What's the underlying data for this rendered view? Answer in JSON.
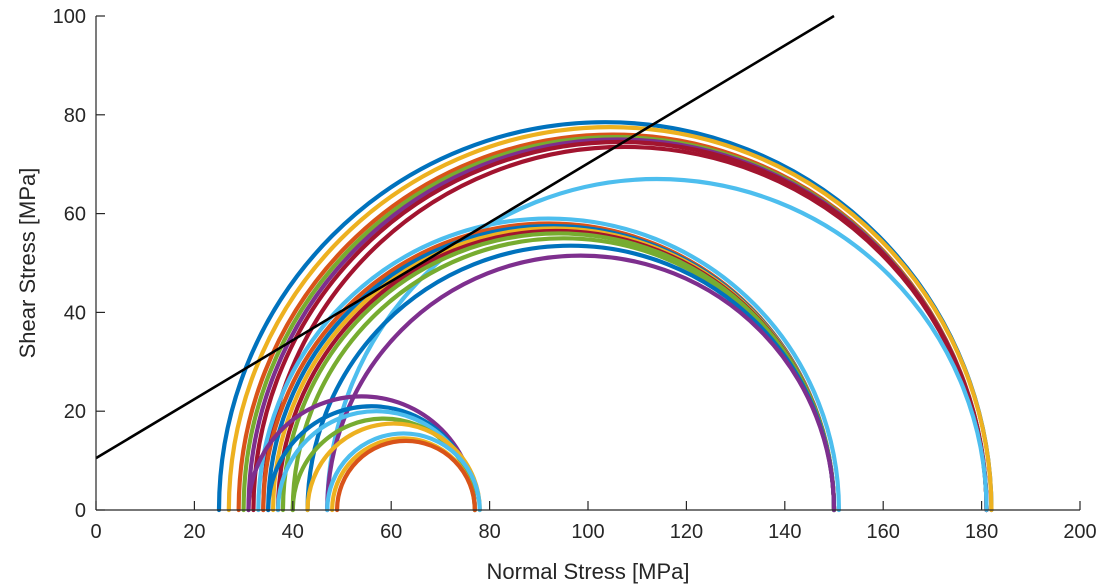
{
  "chart_data": {
    "type": "line",
    "title": "",
    "xlabel": "Normal Stress [MPa]",
    "ylabel": "Shear Stress [MPa]",
    "xlim": [
      0,
      200
    ],
    "ylim": [
      0,
      100
    ],
    "xticks": [
      "0",
      "20",
      "40",
      "60",
      "80",
      "100",
      "120",
      "140",
      "160",
      "180",
      "200"
    ],
    "yticks": [
      "0",
      "20",
      "40",
      "60",
      "80",
      "100"
    ],
    "grid": false,
    "legend": "none",
    "series": [
      {
        "kind": "mohr-circle",
        "sigma3": 25,
        "sigma1": 182,
        "color": "#0072BD"
      },
      {
        "kind": "mohr-circle",
        "sigma3": 27,
        "sigma1": 182,
        "color": "#EDB120"
      },
      {
        "kind": "mohr-circle",
        "sigma3": 29,
        "sigma1": 181,
        "color": "#D95319"
      },
      {
        "kind": "mohr-circle",
        "sigma3": 30,
        "sigma1": 181,
        "color": "#77AC30"
      },
      {
        "kind": "mohr-circle",
        "sigma3": 31,
        "sigma1": 181,
        "color": "#7E2F8E"
      },
      {
        "kind": "mohr-circle",
        "sigma3": 32,
        "sigma1": 181,
        "color": "#A2142F"
      },
      {
        "kind": "mohr-circle",
        "sigma3": 34,
        "sigma1": 181,
        "color": "#A2142F"
      },
      {
        "kind": "mohr-circle",
        "sigma3": 47,
        "sigma1": 181,
        "color": "#4DBEEE"
      },
      {
        "kind": "mohr-circle",
        "sigma3": 33,
        "sigma1": 151,
        "color": "#4DBEEE"
      },
      {
        "kind": "mohr-circle",
        "sigma3": 34,
        "sigma1": 150,
        "color": "#D95319"
      },
      {
        "kind": "mohr-circle",
        "sigma3": 35,
        "sigma1": 150,
        "color": "#0072BD"
      },
      {
        "kind": "mohr-circle",
        "sigma3": 36,
        "sigma1": 150,
        "color": "#EDB120"
      },
      {
        "kind": "mohr-circle",
        "sigma3": 37,
        "sigma1": 150,
        "color": "#A2142F"
      },
      {
        "kind": "mohr-circle",
        "sigma3": 38,
        "sigma1": 150,
        "color": "#77AC30"
      },
      {
        "kind": "mohr-circle",
        "sigma3": 40,
        "sigma1": 150,
        "color": "#77AC30"
      },
      {
        "kind": "mohr-circle",
        "sigma3": 43,
        "sigma1": 150,
        "color": "#0072BD"
      },
      {
        "kind": "mohr-circle",
        "sigma3": 47,
        "sigma1": 150,
        "color": "#7E2F8E"
      },
      {
        "kind": "mohr-circle",
        "sigma3": 31,
        "sigma1": 77,
        "color": "#7E2F8E"
      },
      {
        "kind": "mohr-circle",
        "sigma3": 35,
        "sigma1": 77,
        "color": "#0072BD"
      },
      {
        "kind": "mohr-circle",
        "sigma3": 37,
        "sigma1": 77,
        "color": "#4DBEEE"
      },
      {
        "kind": "mohr-circle",
        "sigma3": 40,
        "sigma1": 77,
        "color": "#77AC30"
      },
      {
        "kind": "mohr-circle",
        "sigma3": 43,
        "sigma1": 78,
        "color": "#EDB120"
      },
      {
        "kind": "mohr-circle",
        "sigma3": 47,
        "sigma1": 78,
        "color": "#4DBEEE"
      },
      {
        "kind": "mohr-circle",
        "sigma3": 48,
        "sigma1": 77,
        "color": "#EDB120"
      },
      {
        "kind": "mohr-circle",
        "sigma3": 49,
        "sigma1": 77,
        "color": "#D95319"
      },
      {
        "kind": "failure-envelope",
        "x": [
          0,
          150
        ],
        "y": [
          10.5,
          100
        ],
        "color": "#000000"
      }
    ]
  }
}
